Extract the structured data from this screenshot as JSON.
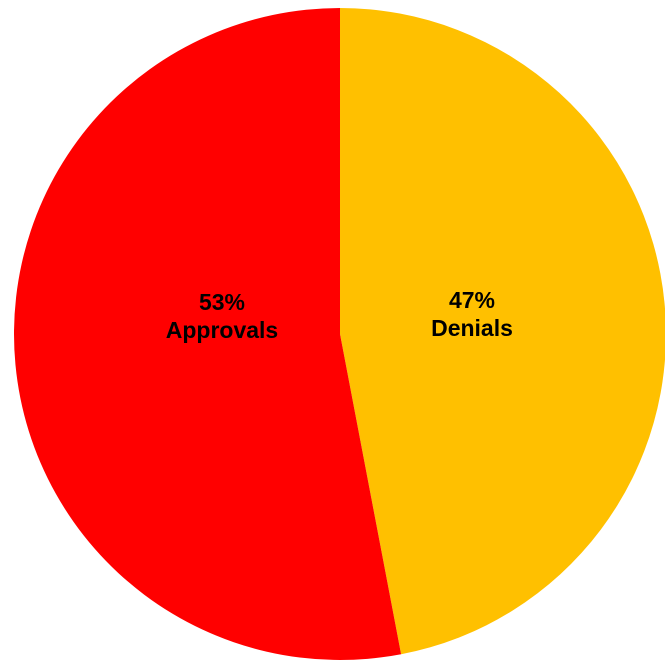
{
  "chart_data": {
    "type": "pie",
    "slices": [
      {
        "label": "Approvals",
        "value": 53,
        "value_label": "53%",
        "color": "#FF0000"
      },
      {
        "label": "Denials",
        "value": 47,
        "value_label": "47%",
        "color": "#FFC000"
      }
    ],
    "title": "",
    "legend": "none",
    "labels": "inside"
  }
}
